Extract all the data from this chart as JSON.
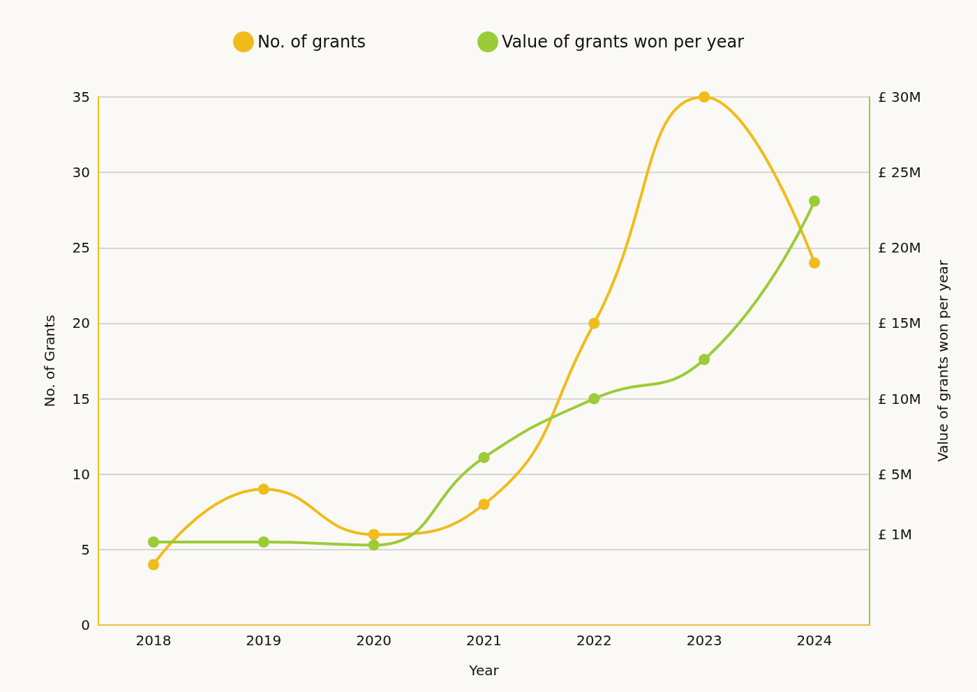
{
  "chart_data": {
    "type": "line",
    "categories": [
      "2018",
      "2019",
      "2020",
      "2021",
      "2022",
      "2023",
      "2024"
    ],
    "xlabel": "Year",
    "ylabel": "No. of Grants",
    "y2label": "Value of grants won per year",
    "series": [
      {
        "name": "No. of grants",
        "color": "#f0bc1c",
        "values": [
          4,
          9,
          6,
          8,
          20,
          35,
          24
        ]
      },
      {
        "name": "Value of grants won per year",
        "color": "#9ccb38",
        "axis": "y2",
        "values": [
          0.5,
          0.5,
          0.3,
          6.1,
          10,
          12.6,
          23.1
        ]
      }
    ],
    "ylim": [
      0,
      35
    ],
    "yticks": [
      0,
      5,
      10,
      15,
      20,
      25,
      30,
      35
    ],
    "y2lim": [
      -5,
      30
    ],
    "y2ticks": [
      {
        "value": 1,
        "label": "£ 1M"
      },
      {
        "value": 5,
        "label": "£ 5M"
      },
      {
        "value": 10,
        "label": "£ 10M"
      },
      {
        "value": 15,
        "label": "£ 15M"
      },
      {
        "value": 20,
        "label": "£ 20M"
      },
      {
        "value": 25,
        "label": "£ 25M"
      },
      {
        "value": 30,
        "label": "£ 30M"
      }
    ],
    "grid": "y",
    "legend": "top",
    "marker": "circle",
    "line_style": "solid"
  }
}
